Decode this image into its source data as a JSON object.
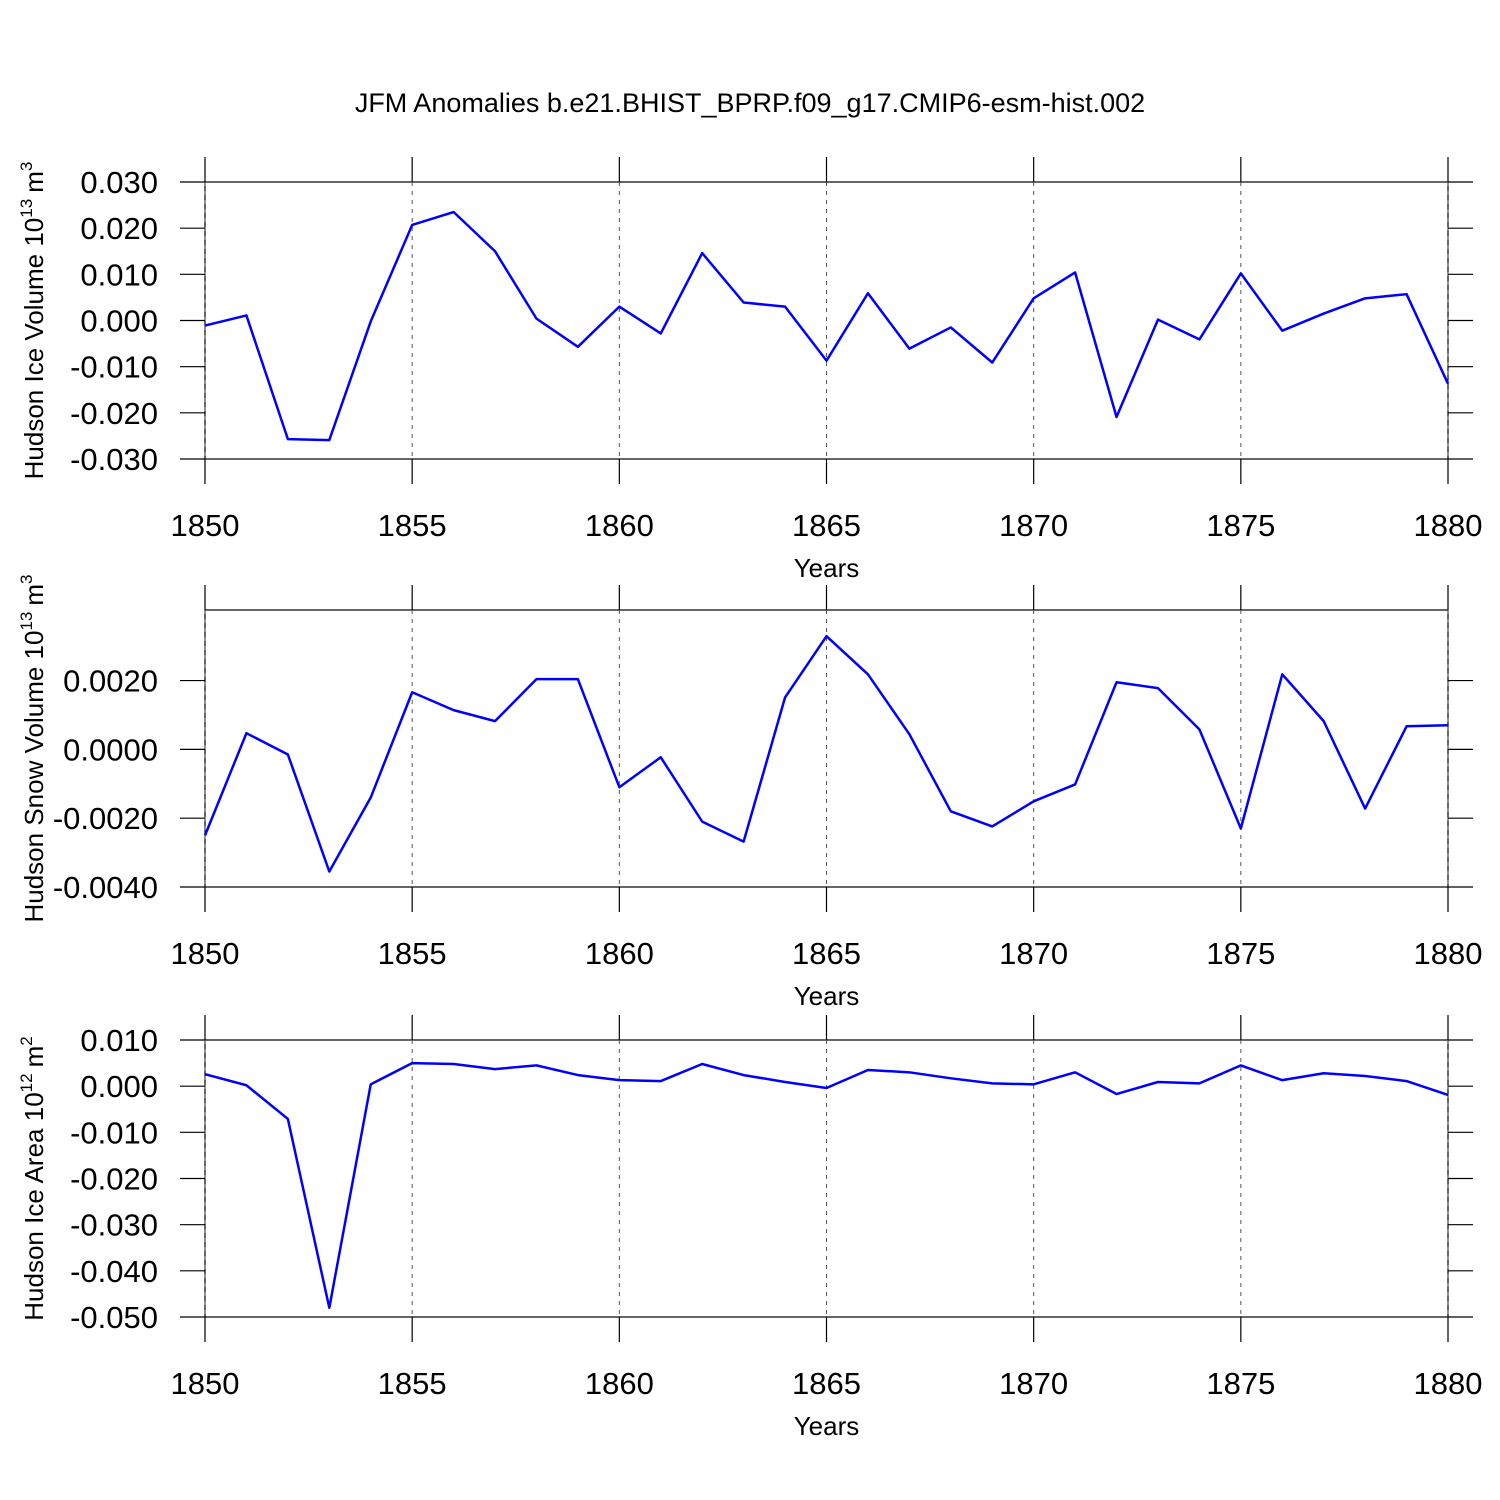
{
  "title": "JFM Anomalies b.e21.BHIST_BPRP.f09_g17.CMIP6-esm-hist.002",
  "chart_data": [
    {
      "type": "line",
      "ylabel": [
        "Hudson Ice Volume 10",
        "13",
        "m",
        "3"
      ],
      "xlabel": "Years",
      "x": [
        1850,
        1851,
        1852,
        1853,
        1854,
        1855,
        1856,
        1857,
        1858,
        1859,
        1860,
        1861,
        1862,
        1863,
        1864,
        1865,
        1866,
        1867,
        1868,
        1869,
        1870,
        1871,
        1872,
        1873,
        1874,
        1875,
        1876,
        1877,
        1878,
        1879,
        1880
      ],
      "values": [
        -0.0011,
        0.0011,
        -0.0257,
        -0.0259,
        -0.0002,
        0.0207,
        0.0235,
        0.015,
        0.0004,
        -0.0057,
        0.003,
        -0.0028,
        0.0146,
        0.0039,
        0.003,
        -0.0087,
        0.0059,
        -0.0061,
        -0.0015,
        -0.0091,
        0.0048,
        0.0104,
        -0.0209,
        0.0002,
        -0.0041,
        0.0102,
        -0.0022,
        0.0015,
        0.0048,
        0.0057,
        -0.0137
      ],
      "color": "#0000ff",
      "xlim": [
        1850,
        1880
      ],
      "xticks": [
        1850,
        1855,
        1860,
        1865,
        1870,
        1875,
        1880
      ],
      "ylim": [
        -0.03,
        0.03
      ],
      "yticks": [
        {
          "value": -0.03,
          "label": "-0.030"
        },
        {
          "value": -0.02,
          "label": "-0.020"
        },
        {
          "value": -0.01,
          "label": "-0.010"
        },
        {
          "value": 0,
          "label": "0.000"
        },
        {
          "value": 0.01,
          "label": "0.010"
        },
        {
          "value": 0.02,
          "label": "0.020"
        },
        {
          "value": 0.03,
          "label": "0.030"
        }
      ],
      "xgrid": true
    },
    {
      "type": "line",
      "ylabel": [
        "Hudson Snow Volume 10",
        "13",
        "m",
        "3"
      ],
      "xlabel": "Years",
      "x": [
        1850,
        1851,
        1852,
        1853,
        1854,
        1855,
        1856,
        1857,
        1858,
        1859,
        1860,
        1861,
        1862,
        1863,
        1864,
        1865,
        1866,
        1867,
        1868,
        1869,
        1870,
        1871,
        1872,
        1873,
        1874,
        1875,
        1876,
        1877,
        1878,
        1879,
        1880
      ],
      "values": [
        -0.0025,
        0.00047,
        -0.00015,
        -0.00355,
        -0.0014,
        0.00166,
        0.00114,
        0.00082,
        0.00204,
        0.00204,
        -0.0011,
        -0.00023,
        -0.0021,
        -0.00268,
        0.00151,
        0.00329,
        0.00218,
        0.00044,
        -0.0018,
        -0.00224,
        -0.00151,
        -0.00102,
        0.00195,
        0.00178,
        0.00058,
        -0.0023,
        0.00218,
        0.00082,
        -0.00172,
        0.00067,
        0.0007
      ],
      "color": "#0000ff",
      "xlim": [
        1850,
        1880
      ],
      "xticks": [
        1850,
        1855,
        1860,
        1865,
        1870,
        1875,
        1880
      ],
      "ylim": [
        -0.004,
        0.00405
      ],
      "yticks": [
        {
          "value": -0.004,
          "label": "-0.0040"
        },
        {
          "value": -0.002,
          "label": "-0.0020"
        },
        {
          "value": 0,
          "label": "0.0000"
        },
        {
          "value": 0.002,
          "label": "0.0020"
        }
      ],
      "xgrid": true
    },
    {
      "type": "line",
      "ylabel": [
        "Hudson Ice Area 10",
        "12",
        "m",
        "2"
      ],
      "xlabel": "Years",
      "x": [
        1850,
        1851,
        1852,
        1853,
        1854,
        1855,
        1856,
        1857,
        1858,
        1859,
        1860,
        1861,
        1862,
        1863,
        1864,
        1865,
        1866,
        1867,
        1868,
        1869,
        1870,
        1871,
        1872,
        1873,
        1874,
        1875,
        1876,
        1877,
        1878,
        1879,
        1880
      ],
      "values": [
        0.0026,
        0.0002,
        -0.0071,
        -0.048,
        0.0004,
        0.005,
        0.0048,
        0.0037,
        0.0045,
        0.0024,
        0.0013,
        0.0011,
        0.0048,
        0.0024,
        0.0009,
        -0.0004,
        0.0035,
        0.003,
        0.0017,
        0.0006,
        0.0004,
        0.003,
        -0.0017,
        0.0009,
        0.0006,
        0.0045,
        0.0013,
        0.0028,
        0.0022,
        0.0011,
        -0.0019
      ],
      "color": "#0000ff",
      "xlim": [
        1850,
        1880
      ],
      "xticks": [
        1850,
        1855,
        1860,
        1865,
        1870,
        1875,
        1880
      ],
      "ylim": [
        -0.05,
        0.01
      ],
      "yticks": [
        {
          "value": -0.05,
          "label": "-0.050"
        },
        {
          "value": -0.04,
          "label": "-0.040"
        },
        {
          "value": -0.03,
          "label": "-0.030"
        },
        {
          "value": -0.02,
          "label": "-0.020"
        },
        {
          "value": -0.01,
          "label": "-0.010"
        },
        {
          "value": 0,
          "label": "0.000"
        },
        {
          "value": 0.01,
          "label": "0.010"
        }
      ],
      "xgrid": true
    }
  ]
}
